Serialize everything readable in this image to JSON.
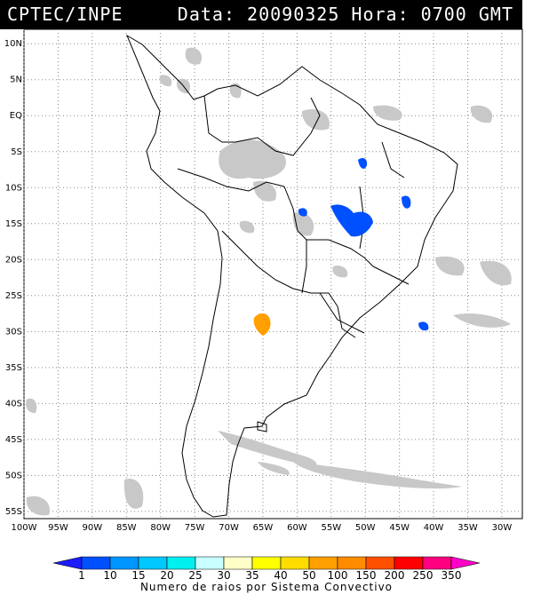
{
  "header": {
    "org": "CPTEC/INPE",
    "datetime": "Data: 20090325 Hora: 0700 GMT"
  },
  "map": {
    "lat_labels": [
      "10N",
      "5N",
      "EQ",
      "5S",
      "10S",
      "15S",
      "20S",
      "25S",
      "30S",
      "35S",
      "40S",
      "45S",
      "50S",
      "55S"
    ],
    "lon_labels": [
      "100W",
      "95W",
      "90W",
      "85W",
      "80W",
      "75W",
      "70W",
      "65W",
      "60W",
      "55W",
      "50W",
      "45W",
      "40W",
      "35W",
      "30W"
    ],
    "lat_range": [
      -56,
      12
    ],
    "lon_range": [
      -100,
      -27
    ],
    "grid": "dotted",
    "lightning_clusters": [
      {
        "lat": -29,
        "lon": -64,
        "class": "100"
      },
      {
        "lat": -14.5,
        "lon": -49.5,
        "class": "10"
      },
      {
        "lat": -7.5,
        "lon": -50.5,
        "class": "10"
      },
      {
        "lat": -12,
        "lon": -42,
        "class": "10"
      },
      {
        "lat": -13,
        "lon": -60,
        "class": "10"
      },
      {
        "lat": -29.5,
        "lon": -40,
        "class": "10"
      }
    ]
  },
  "colorbar": {
    "labels": [
      "1",
      "10",
      "15",
      "20",
      "25",
      "30",
      "35",
      "40",
      "50",
      "100",
      "150",
      "200",
      "250",
      "350"
    ],
    "colors": [
      "#1c1cff",
      "#0050ff",
      "#0096ff",
      "#00c8ff",
      "#00f0f0",
      "#c8ffff",
      "#ffffc8",
      "#ffff00",
      "#ffdc00",
      "#ffa000",
      "#ff8c00",
      "#ff5000",
      "#ff0000",
      "#ff0080",
      "#ff00c8"
    ],
    "caption": "Numero de raios por Sistema Convectivo"
  }
}
